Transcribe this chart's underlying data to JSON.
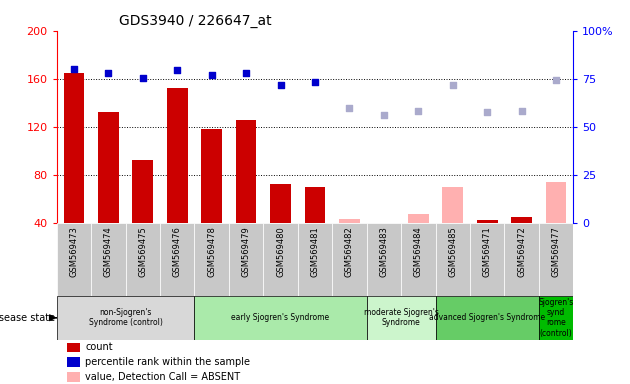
{
  "title": "GDS3940 / 226647_at",
  "samples": [
    "GSM569473",
    "GSM569474",
    "GSM569475",
    "GSM569476",
    "GSM569478",
    "GSM569479",
    "GSM569480",
    "GSM569481",
    "GSM569482",
    "GSM569483",
    "GSM569484",
    "GSM569485",
    "GSM569471",
    "GSM569472",
    "GSM569477"
  ],
  "count_values": [
    165,
    132,
    92,
    152,
    118,
    126,
    72,
    70,
    null,
    null,
    null,
    null,
    42,
    45,
    null
  ],
  "count_absent": [
    null,
    null,
    null,
    null,
    null,
    null,
    null,
    null,
    43,
    null,
    47,
    70,
    null,
    null,
    74
  ],
  "rank_values": [
    168,
    165,
    161,
    167,
    163,
    165,
    155,
    157,
    null,
    null,
    null,
    null,
    null,
    null,
    null
  ],
  "rank_absent": [
    null,
    null,
    null,
    null,
    null,
    null,
    null,
    null,
    136,
    130,
    133,
    155,
    132,
    133,
    159
  ],
  "ylim_left": [
    40,
    200
  ],
  "ylim_right": [
    0,
    100
  ],
  "left_ticks": [
    40,
    80,
    120,
    160,
    200
  ],
  "right_ticks": [
    0,
    25,
    50,
    75,
    100
  ],
  "bar_color_present": "#cc0000",
  "bar_color_absent": "#ffb0b0",
  "dot_color_present": "#0000cc",
  "dot_color_absent": "#aaaacc",
  "bar_width": 0.6,
  "groups": [
    {
      "label": "non-Sjogren's\nSyndrome (control)",
      "start": 0,
      "end": 3,
      "color": "#d8d8d8"
    },
    {
      "label": "early Sjogren's Syndrome",
      "start": 4,
      "end": 8,
      "color": "#aaeaaa"
    },
    {
      "label": "moderate Sjogren's\nSyndrome",
      "start": 9,
      "end": 10,
      "color": "#ccf5cc"
    },
    {
      "label": "advanced Sjogren's Syndrome",
      "start": 11,
      "end": 13,
      "color": "#66cc66"
    },
    {
      "label": "Sjogren's\nsynd\nrome\n(control)",
      "start": 14,
      "end": 14,
      "color": "#00bb00"
    }
  ],
  "xlabel_bg": "#c8c8c8",
  "legend_items": [
    {
      "color": "#cc0000",
      "label": "count"
    },
    {
      "color": "#0000cc",
      "label": "percentile rank within the sample"
    },
    {
      "color": "#ffb0b0",
      "label": "value, Detection Call = ABSENT"
    },
    {
      "color": "#aaaacc",
      "label": "rank, Detection Call = ABSENT"
    }
  ]
}
